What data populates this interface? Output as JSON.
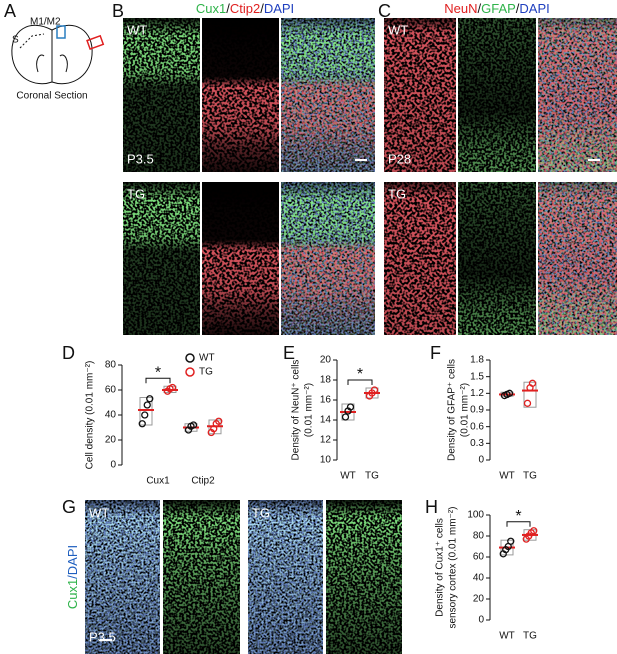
{
  "panels": {
    "A": {
      "letter": "A",
      "labels": [
        "S",
        "M1/M2"
      ],
      "caption": "Coronal Section"
    },
    "B": {
      "letter": "B",
      "stain_parts": [
        "Cux1",
        "/",
        "Ctip2",
        "/",
        "DAPI"
      ],
      "rows": [
        {
          "genotype": "WT",
          "age": "P3.5"
        },
        {
          "genotype": "TG"
        }
      ]
    },
    "C": {
      "letter": "C",
      "stain_parts": [
        "NeuN",
        "/",
        "GFAP",
        "/",
        "DAPI"
      ],
      "rows": [
        {
          "genotype": "WT",
          "age": "P28"
        },
        {
          "genotype": "TG"
        }
      ]
    },
    "D": {
      "letter": "D"
    },
    "E": {
      "letter": "E"
    },
    "F": {
      "letter": "F"
    },
    "G": {
      "letter": "G",
      "stain_parts": [
        "Cux1",
        "/DAPI"
      ],
      "genotypes": [
        "WT",
        "TG"
      ],
      "age": "P3.5"
    },
    "H": {
      "letter": "H"
    }
  },
  "chart_data": [
    {
      "type": "box",
      "ylabel": [
        "Cell density (0.01 mm⁻²)"
      ],
      "categories": [
        "Cux1",
        "Ctip2"
      ],
      "ylim": [
        0,
        80
      ],
      "yticks": [
        0,
        20,
        40,
        60,
        80
      ],
      "legend": "upper right",
      "significance": "*",
      "series": [
        {
          "name": "WT",
          "color": "#111111",
          "groups": [
            {
              "values": [
                33,
                40,
                48,
                53
              ],
              "median": 44,
              "q1": 32,
              "q3": 54
            },
            {
              "values": [
                28,
                31,
                32
              ],
              "median": 30,
              "q1": 27,
              "q3": 33
            }
          ]
        },
        {
          "name": "TG",
          "color": "#e02020",
          "groups": [
            {
              "values": [
                59,
                61,
                62
              ],
              "median": 60,
              "q1": 58,
              "q3": 63
            },
            {
              "values": [
                26,
                29,
                33,
                35
              ],
              "median": 31,
              "q1": 25,
              "q3": 36
            }
          ]
        }
      ]
    },
    {
      "type": "box",
      "ylabel": [
        "Density of NeuN⁺ cells",
        "(0.01 mm⁻²)"
      ],
      "categories": [
        "WT",
        "TG"
      ],
      "colors": [
        "#111111",
        "#e02020"
      ],
      "ylim": [
        10,
        20
      ],
      "yticks": [
        10,
        12,
        14,
        16,
        18,
        20
      ],
      "significance": "*",
      "groups": [
        {
          "values": [
            14.3,
            14.9,
            15.3
          ],
          "median": 14.8,
          "q1": 14,
          "q3": 15.6
        },
        {
          "values": [
            16.4,
            16.7,
            17
          ],
          "median": 16.7,
          "q1": 16.2,
          "q3": 17.2
        }
      ]
    },
    {
      "type": "box",
      "ylabel": [
        "Density of GFAP⁺ cells",
        "(0.01 mm⁻²)"
      ],
      "categories": [
        "WT",
        "TG"
      ],
      "colors": [
        "#111111",
        "#e02020"
      ],
      "ylim": [
        0,
        1.8
      ],
      "yticks": [
        0,
        0.3,
        0.6,
        0.9,
        1.2,
        1.5,
        1.8
      ],
      "groups": [
        {
          "values": [
            1.16,
            1.18,
            1.2
          ],
          "median": 1.18,
          "q1": 1.15,
          "q3": 1.22
        },
        {
          "values": [
            1.02,
            1.3,
            1.38
          ],
          "median": 1.25,
          "q1": 0.95,
          "q3": 1.4
        }
      ]
    },
    {
      "type": "box",
      "ylabel": [
        "Density of Cux1⁺ cells",
        "sensory cortex (0.01 mm⁻²)"
      ],
      "categories": [
        "WT",
        "TG"
      ],
      "colors": [
        "#111111",
        "#e02020"
      ],
      "ylim": [
        0,
        100
      ],
      "yticks": [
        0,
        20,
        40,
        60,
        80,
        100
      ],
      "significance": "*",
      "groups": [
        {
          "values": [
            63,
            67,
            70,
            75
          ],
          "median": 69,
          "q1": 62,
          "q3": 76
        },
        {
          "values": [
            77,
            80,
            83,
            85
          ],
          "median": 81,
          "q1": 76,
          "q3": 86
        }
      ]
    }
  ]
}
